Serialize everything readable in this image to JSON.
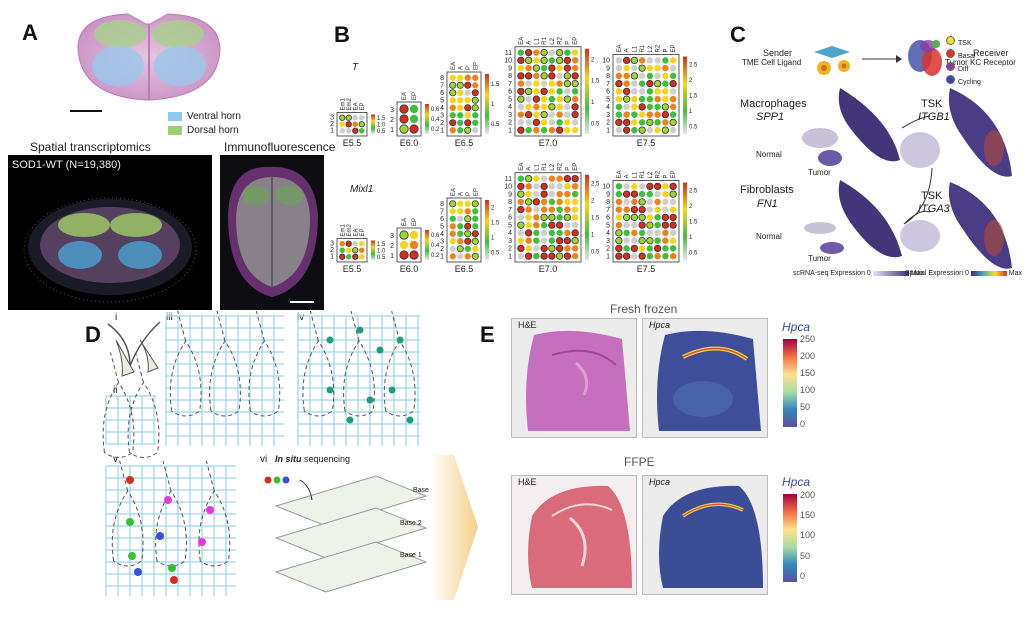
{
  "panels": {
    "A": {
      "label": "A",
      "legend": [
        {
          "text": "Ventral horn",
          "color": "#8ec9ee"
        },
        {
          "text": "Dorsal horn",
          "color": "#9bd06e"
        }
      ],
      "spatial_title": "Spatial transcriptomics",
      "if_title": "Immunofluorescence",
      "sample_label": "SOD1-WT (N=19,380)"
    },
    "B": {
      "label": "B",
      "gene_top": "T",
      "gene_bottom": "Mixl1",
      "stages": [
        "E5.5",
        "E6.0",
        "E6.5",
        "E7.0",
        "E7.5"
      ],
      "row_labels": {
        "E5.5": [
          "3",
          "2",
          "1"
        ],
        "E6.0": [
          "3",
          "2",
          "1"
        ],
        "E6.5": [
          "8",
          "7",
          "6",
          "5",
          "4",
          "3",
          "2",
          "1"
        ],
        "E7.0": [
          "11",
          "10",
          "9",
          "8",
          "7",
          "6",
          "5",
          "4",
          "3",
          "2",
          "1"
        ],
        "E7.5": [
          "10",
          "9",
          "8",
          "7",
          "6",
          "5",
          "4",
          "3",
          "2",
          "1"
        ]
      },
      "col_labels": {
        "E5.5": [
          "Em1",
          "Em2",
          "EA",
          "EP"
        ],
        "E6.0": [
          "EA",
          "EP"
        ],
        "E6.5": [
          "EA",
          "A",
          "P",
          "EP"
        ],
        "E7.0": [
          "EA",
          "A",
          "L1",
          "R1",
          "L2",
          "R2",
          "P",
          "EP"
        ],
        "E7.5": [
          "EA",
          "A",
          "L1",
          "R1",
          "L2",
          "R2",
          "P",
          "EP"
        ]
      },
      "colorbar_ticks_top": {
        "E5.5": [
          "1.5",
          "1.0",
          "0.5"
        ],
        "E6.0": [
          "0.6",
          "0.4",
          "0.2"
        ],
        "E6.5": [
          "1.5",
          "1",
          "0.5"
        ],
        "E7.0": [
          "2",
          "1.5",
          "1",
          "0.5"
        ],
        "E7.5": [
          "2.5",
          "2",
          "1.5",
          "1",
          "0.5"
        ]
      },
      "colorbar_ticks_bottom": {
        "E5.5": [
          "1.5",
          "1.0",
          "0.5"
        ],
        "E6.0": [
          "0.6",
          "0.4",
          "0.2"
        ],
        "E6.5": [
          "2",
          "1.5",
          "1",
          "0.5"
        ],
        "E7.0": [
          "2.5",
          "2",
          "1.5",
          "1",
          "0.5"
        ],
        "E7.5": [
          "2.5",
          "2",
          "1.5",
          "1",
          "0.5"
        ]
      }
    },
    "C": {
      "label": "C",
      "sender": "Sender",
      "sender_sub": "TME Cell Ligand",
      "receiver": "Receiver",
      "receiver_sub": "Tumor KC Receptor",
      "legend": [
        {
          "text": "TSK",
          "color": "#f2e21d"
        },
        {
          "text": "Basal",
          "color": "#d9342b"
        },
        {
          "text": "Diff",
          "color": "#8e3aa0"
        },
        {
          "text": "Cycling",
          "color": "#3a4aa8"
        }
      ],
      "macrophages": "Macrophages",
      "spp1": "SPP1",
      "fibroblasts": "Fibroblasts",
      "fn1": "FN1",
      "tsk1": "TSK",
      "itgb1": "ITGB1",
      "tsk2": "TSK",
      "itga3": "ITGA3",
      "normal": "Normal",
      "tumor": "Tumor",
      "sc_expr": "scRNA-seq Expression",
      "sp_expr": "Spatial Expression",
      "zero": "0",
      "max": "Max"
    },
    "D": {
      "label": "D",
      "sub": [
        "i",
        "ii",
        "iii",
        "iv",
        "v",
        "vi"
      ],
      "insitu": "In situ",
      "sequencing": "sequencing",
      "bases": [
        "Base N",
        "Base 2",
        "Base 1"
      ],
      "dots": "..."
    },
    "E": {
      "label": "E",
      "fresh_frozen": "Fresh frozen",
      "ffpe": "FFPE",
      "he": "H&E",
      "gene": "Hpca",
      "ticks_top": [
        "250",
        "200",
        "150",
        "100",
        "50",
        "0"
      ],
      "ticks_bottom": [
        "200",
        "150",
        "100",
        "50",
        "0"
      ]
    }
  }
}
